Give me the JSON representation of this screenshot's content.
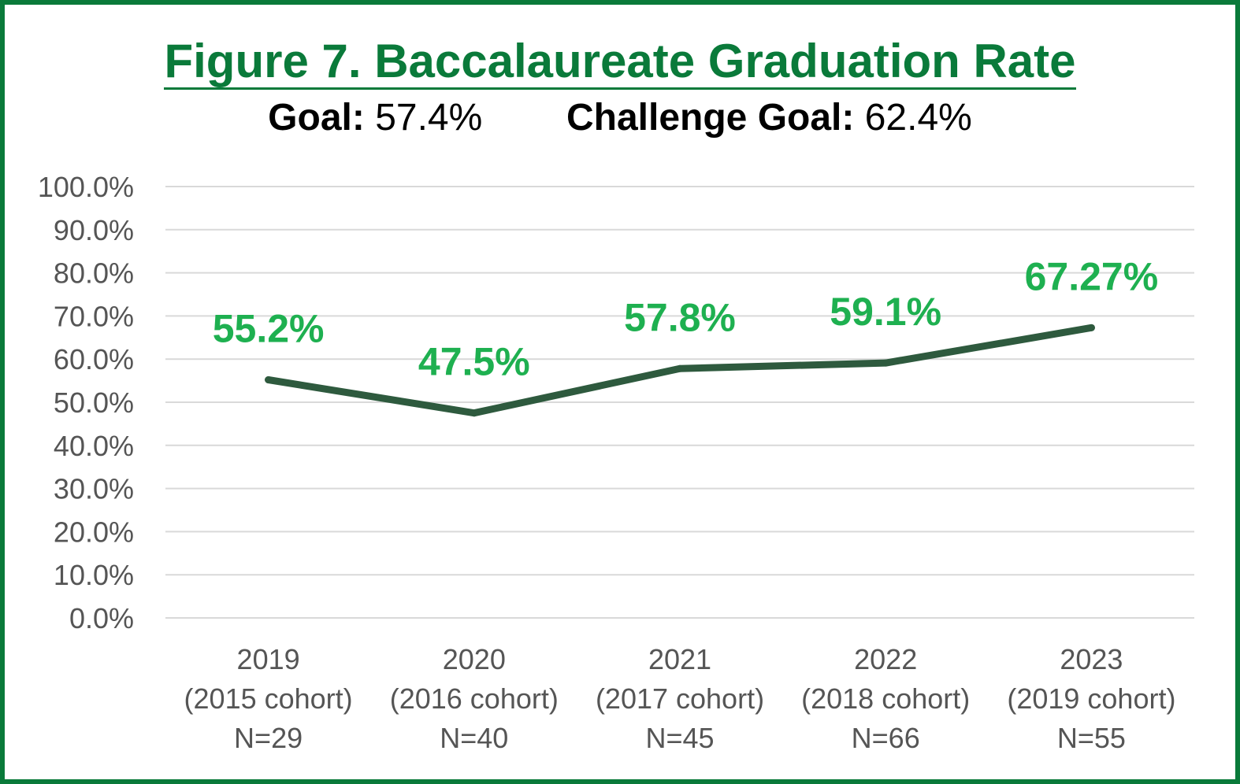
{
  "title": "Figure 7. Baccalaureate Graduation Rate",
  "goal_label": "Goal:",
  "goal_value": "57.4%",
  "challenge_label": "Challenge Goal:",
  "challenge_value": "62.4%",
  "colors": {
    "frame": "#0a7a3a",
    "title": "#0a7a3a",
    "line": "#2e5a3e",
    "data_labels": "#1eb050",
    "grid": "#d9d9d9",
    "axis_text": "#555555"
  },
  "chart_data": {
    "type": "line",
    "title": "Figure 7. Baccalaureate Graduation Rate",
    "categories": [
      [
        "2019",
        "(2015 cohort)",
        "N=29"
      ],
      [
        "2020",
        "(2016 cohort)",
        "N=40"
      ],
      [
        "2021",
        "(2017 cohort)",
        "N=45"
      ],
      [
        "2022",
        "(2018 cohort)",
        "N=66"
      ],
      [
        "2023",
        "(2019 cohort)",
        "N=55"
      ]
    ],
    "series": [
      {
        "values": [
          55.2,
          47.5,
          57.8,
          59.1,
          67.27
        ],
        "labels": [
          "55.2%",
          "47.5%",
          "57.8%",
          "59.1%",
          "67.27%"
        ]
      }
    ],
    "ylim": [
      0,
      100
    ],
    "yticks": [
      "0.0%",
      "10.0%",
      "20.0%",
      "30.0%",
      "40.0%",
      "50.0%",
      "60.0%",
      "70.0%",
      "80.0%",
      "90.0%",
      "100.0%"
    ],
    "grid": true,
    "legend": "none"
  }
}
